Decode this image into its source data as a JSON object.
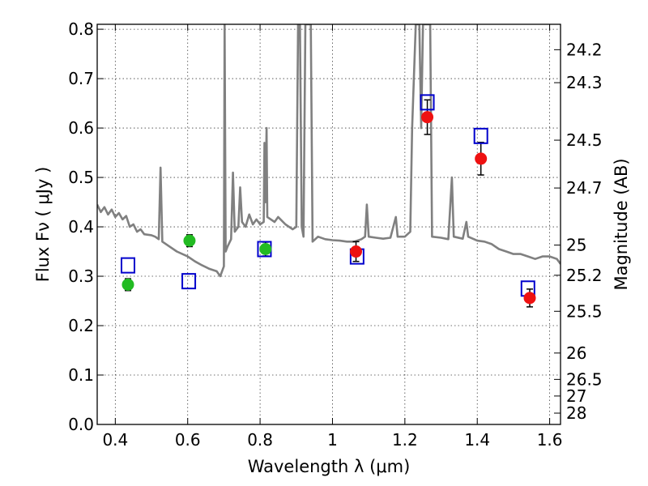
{
  "chart_data": {
    "type": "scatter",
    "title": "",
    "xlabel": "Wavelength  λ (μm)",
    "ylabel": "Flux  Fν  ( μJy )",
    "y2label": "Magnitude (AB)",
    "xlim": [
      0.35,
      1.63
    ],
    "ylim": [
      0.0,
      0.81
    ],
    "grid": true,
    "x_ticks": [
      {
        "value": 0.4,
        "label": "0.4"
      },
      {
        "value": 0.6,
        "label": "0.6"
      },
      {
        "value": 0.8,
        "label": "0.8"
      },
      {
        "value": 1.0,
        "label": "1"
      },
      {
        "value": 1.2,
        "label": "1.2"
      },
      {
        "value": 1.4,
        "label": "1.4"
      },
      {
        "value": 1.6,
        "label": "1.6"
      }
    ],
    "y_ticks": [
      {
        "value": 0.0,
        "label": "0.0"
      },
      {
        "value": 0.1,
        "label": "0.1"
      },
      {
        "value": 0.2,
        "label": "0.2"
      },
      {
        "value": 0.3,
        "label": "0.3"
      },
      {
        "value": 0.4,
        "label": "0.4"
      },
      {
        "value": 0.5,
        "label": "0.5"
      },
      {
        "value": 0.6,
        "label": "0.6"
      },
      {
        "value": 0.7,
        "label": "0.7"
      },
      {
        "value": 0.8,
        "label": "0.8"
      }
    ],
    "mag_ticks": [
      {
        "mag": 24.2,
        "label": "24.2"
      },
      {
        "mag": 24.3,
        "label": "24.3"
      },
      {
        "mag": 24.5,
        "label": "24.5"
      },
      {
        "mag": 24.7,
        "label": "24.7"
      },
      {
        "mag": 25.0,
        "label": "25"
      },
      {
        "mag": 25.2,
        "label": "25.2"
      },
      {
        "mag": 25.5,
        "label": "25.5"
      },
      {
        "mag": 26.0,
        "label": "26"
      },
      {
        "mag": 26.5,
        "label": "26.5"
      },
      {
        "mag": 27.0,
        "label": "27"
      },
      {
        "mag": 28.0,
        "label": "28"
      }
    ],
    "series": [
      {
        "kind": "line",
        "color": "#808080",
        "points": [
          [
            0.35,
            0.445
          ],
          [
            0.36,
            0.43
          ],
          [
            0.37,
            0.44
          ],
          [
            0.38,
            0.425
          ],
          [
            0.39,
            0.435
          ],
          [
            0.4,
            0.42
          ],
          [
            0.41,
            0.428
          ],
          [
            0.42,
            0.415
          ],
          [
            0.43,
            0.422
          ],
          [
            0.44,
            0.4
          ],
          [
            0.45,
            0.405
          ],
          [
            0.46,
            0.39
          ],
          [
            0.47,
            0.395
          ],
          [
            0.48,
            0.385
          ],
          [
            0.5,
            0.383
          ],
          [
            0.51,
            0.38
          ],
          [
            0.52,
            0.375
          ],
          [
            0.525,
            0.52
          ],
          [
            0.53,
            0.37
          ],
          [
            0.55,
            0.36
          ],
          [
            0.57,
            0.35
          ],
          [
            0.6,
            0.34
          ],
          [
            0.62,
            0.33
          ],
          [
            0.64,
            0.322
          ],
          [
            0.66,
            0.315
          ],
          [
            0.68,
            0.31
          ],
          [
            0.69,
            0.3
          ],
          [
            0.7,
            0.32
          ],
          [
            0.702,
            0.81
          ],
          [
            0.705,
            0.35
          ],
          [
            0.71,
            0.36
          ],
          [
            0.72,
            0.375
          ],
          [
            0.725,
            0.51
          ],
          [
            0.73,
            0.39
          ],
          [
            0.74,
            0.4
          ],
          [
            0.745,
            0.48
          ],
          [
            0.75,
            0.41
          ],
          [
            0.76,
            0.4
          ],
          [
            0.77,
            0.425
          ],
          [
            0.78,
            0.405
          ],
          [
            0.79,
            0.415
          ],
          [
            0.8,
            0.405
          ],
          [
            0.81,
            0.41
          ],
          [
            0.812,
            0.57
          ],
          [
            0.815,
            0.45
          ],
          [
            0.818,
            0.6
          ],
          [
            0.82,
            0.42
          ],
          [
            0.84,
            0.41
          ],
          [
            0.85,
            0.42
          ],
          [
            0.87,
            0.405
          ],
          [
            0.89,
            0.395
          ],
          [
            0.9,
            0.4
          ],
          [
            0.905,
            0.81
          ],
          [
            0.91,
            0.81
          ],
          [
            0.915,
            0.4
          ],
          [
            0.92,
            0.38
          ],
          [
            0.925,
            0.81
          ],
          [
            0.935,
            0.81
          ],
          [
            0.94,
            0.81
          ],
          [
            0.945,
            0.37
          ],
          [
            0.96,
            0.38
          ],
          [
            0.98,
            0.375
          ],
          [
            1.0,
            0.373
          ],
          [
            1.02,
            0.372
          ],
          [
            1.04,
            0.37
          ],
          [
            1.06,
            0.37
          ],
          [
            1.08,
            0.375
          ],
          [
            1.09,
            0.38
          ],
          [
            1.095,
            0.445
          ],
          [
            1.1,
            0.38
          ],
          [
            1.12,
            0.378
          ],
          [
            1.14,
            0.376
          ],
          [
            1.16,
            0.378
          ],
          [
            1.175,
            0.42
          ],
          [
            1.18,
            0.38
          ],
          [
            1.2,
            0.38
          ],
          [
            1.215,
            0.39
          ],
          [
            1.22,
            0.6
          ],
          [
            1.23,
            0.81
          ],
          [
            1.24,
            0.81
          ],
          [
            1.245,
            0.6
          ],
          [
            1.25,
            0.81
          ],
          [
            1.265,
            0.81
          ],
          [
            1.27,
            0.81
          ],
          [
            1.275,
            0.38
          ],
          [
            1.3,
            0.378
          ],
          [
            1.32,
            0.375
          ],
          [
            1.33,
            0.5
          ],
          [
            1.335,
            0.38
          ],
          [
            1.36,
            0.376
          ],
          [
            1.37,
            0.41
          ],
          [
            1.375,
            0.38
          ],
          [
            1.4,
            0.372
          ],
          [
            1.42,
            0.37
          ],
          [
            1.44,
            0.365
          ],
          [
            1.46,
            0.355
          ],
          [
            1.48,
            0.35
          ],
          [
            1.5,
            0.345
          ],
          [
            1.52,
            0.345
          ],
          [
            1.54,
            0.34
          ],
          [
            1.56,
            0.335
          ],
          [
            1.58,
            0.34
          ],
          [
            1.6,
            0.34
          ],
          [
            1.62,
            0.335
          ],
          [
            1.63,
            0.325
          ]
        ]
      },
      {
        "kind": "markers",
        "marker": "square",
        "color": "#0000cc",
        "points": [
          [
            0.435,
            0.322
          ],
          [
            0.603,
            0.29
          ],
          [
            0.812,
            0.355
          ],
          [
            1.068,
            0.34
          ],
          [
            1.262,
            0.652
          ],
          [
            1.41,
            0.584
          ],
          [
            1.54,
            0.275
          ]
        ]
      },
      {
        "kind": "markers",
        "marker": "circle",
        "color": "#22bb22",
        "points": [
          [
            0.435,
            0.283,
            0.012
          ],
          [
            0.605,
            0.372,
            0.012
          ],
          [
            0.815,
            0.355,
            0.014
          ]
        ]
      },
      {
        "kind": "markers",
        "marker": "circle",
        "color": "#ee1111",
        "points": [
          [
            1.065,
            0.35,
            0.02
          ],
          [
            1.262,
            0.622,
            0.035
          ],
          [
            1.41,
            0.538,
            0.033
          ],
          [
            1.545,
            0.256,
            0.018
          ]
        ]
      }
    ]
  }
}
